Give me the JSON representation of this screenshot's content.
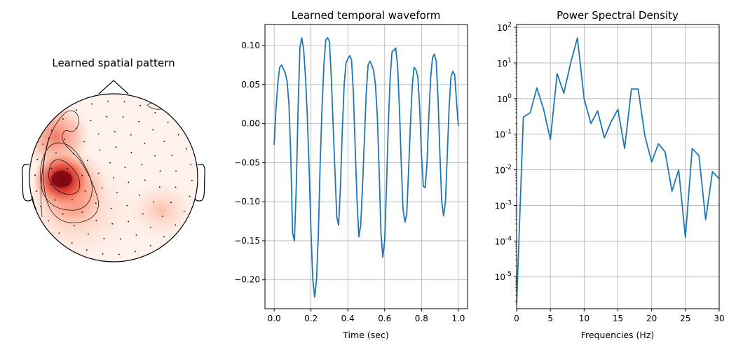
{
  "chart_data": [
    {
      "type": "topomap",
      "title": "Learned spatial pattern",
      "colormap": "Reds",
      "peak_color": "#8b0c12",
      "sensor_count": 96
    },
    {
      "type": "line",
      "title": "Learned temporal waveform",
      "xlabel": "Time (sec)",
      "ylabel": "",
      "xlim": [
        -0.05,
        1.05
      ],
      "ylim": [
        -0.237,
        0.127
      ],
      "xticks": [
        "0.0",
        "0.2",
        "0.4",
        "0.6",
        "0.8",
        "1.0"
      ],
      "xtick_values": [
        0,
        0.2,
        0.4,
        0.6,
        0.8,
        1.0
      ],
      "yticks": [
        "0.10",
        "0.05",
        "0.00",
        "−0.05",
        "−0.10",
        "−0.15",
        "−0.20"
      ],
      "ytick_values": [
        0.1,
        0.05,
        0.0,
        -0.05,
        -0.1,
        -0.15,
        -0.2
      ],
      "grid": true,
      "line_color": "#1f77b4",
      "series": [
        {
          "x": [
            0.0,
            0.01,
            0.02,
            0.03,
            0.04,
            0.05,
            0.06,
            0.07,
            0.08,
            0.09,
            0.1,
            0.11,
            0.12,
            0.13,
            0.14,
            0.15,
            0.16,
            0.17,
            0.18,
            0.19,
            0.2,
            0.21,
            0.22,
            0.23,
            0.24,
            0.25,
            0.26,
            0.27,
            0.28,
            0.29,
            0.3,
            0.31,
            0.32,
            0.33,
            0.34,
            0.35,
            0.36,
            0.37,
            0.38,
            0.39,
            0.4,
            0.41,
            0.42,
            0.43,
            0.44,
            0.45,
            0.46,
            0.47,
            0.48,
            0.49,
            0.5,
            0.51,
            0.52,
            0.53,
            0.54,
            0.55,
            0.56,
            0.57,
            0.58,
            0.59,
            0.6,
            0.61,
            0.62,
            0.63,
            0.64,
            0.65,
            0.66,
            0.67,
            0.68,
            0.69,
            0.7,
            0.71,
            0.72,
            0.73,
            0.74,
            0.75,
            0.76,
            0.77,
            0.78,
            0.79,
            0.8,
            0.81,
            0.82,
            0.83,
            0.84,
            0.85,
            0.86,
            0.87,
            0.88,
            0.89,
            0.9,
            0.91,
            0.92,
            0.93,
            0.94,
            0.95,
            0.96,
            0.97,
            0.98,
            0.99,
            1.0
          ],
          "y": [
            -0.027,
            0.02,
            0.052,
            0.072,
            0.075,
            0.07,
            0.065,
            0.055,
            0.025,
            -0.04,
            -0.14,
            -0.15,
            -0.08,
            0.02,
            0.098,
            0.11,
            0.095,
            0.06,
            0.01,
            -0.06,
            -0.14,
            -0.2,
            -0.222,
            -0.2,
            -0.14,
            -0.05,
            0.02,
            0.075,
            0.107,
            0.11,
            0.105,
            0.06,
            0.0,
            -0.06,
            -0.12,
            -0.13,
            -0.08,
            -0.01,
            0.05,
            0.078,
            0.083,
            0.087,
            0.082,
            0.04,
            -0.03,
            -0.1,
            -0.145,
            -0.13,
            -0.08,
            -0.02,
            0.04,
            0.075,
            0.08,
            0.075,
            0.068,
            0.05,
            0.01,
            -0.06,
            -0.14,
            -0.171,
            -0.15,
            -0.08,
            0.0,
            0.06,
            0.092,
            0.094,
            0.097,
            0.075,
            0.02,
            -0.05,
            -0.11,
            -0.126,
            -0.115,
            -0.06,
            0.0,
            0.05,
            0.072,
            0.069,
            0.06,
            0.02,
            -0.04,
            -0.08,
            -0.082,
            -0.05,
            0.01,
            0.06,
            0.085,
            0.089,
            0.08,
            0.03,
            -0.04,
            -0.1,
            -0.118,
            -0.1,
            -0.04,
            0.02,
            0.06,
            0.067,
            0.063,
            0.03,
            -0.003
          ]
        }
      ]
    },
    {
      "type": "line",
      "title": "Power Spectral Density",
      "xlabel": "Frequencies (Hz)",
      "ylabel": "",
      "yscale": "log",
      "xlim": [
        0,
        30
      ],
      "ylim_log10": [
        -5.9,
        2.08
      ],
      "xticks": [
        "0",
        "5",
        "10",
        "15",
        "20",
        "25",
        "30"
      ],
      "xtick_values": [
        0,
        5,
        10,
        15,
        20,
        25,
        30
      ],
      "ytick_exponents": [
        "2",
        "1",
        "0",
        "-1",
        "-2",
        "-3",
        "-4",
        "-5"
      ],
      "ytick_values_log10": [
        2,
        1,
        0,
        -1,
        -2,
        -3,
        -4,
        -5
      ],
      "ytick_base": "10",
      "grid": true,
      "line_color": "#1f77b4",
      "series": [
        {
          "x": [
            0,
            1,
            2,
            3,
            4,
            5,
            6,
            7,
            8,
            9,
            10,
            11,
            12,
            13,
            14,
            15,
            16,
            17,
            18,
            19,
            20,
            21,
            22,
            23,
            24,
            25,
            26,
            27,
            28,
            29,
            30
          ],
          "y_log10": [
            -5.8,
            -0.52,
            -0.4,
            0.3,
            -0.3,
            -1.15,
            0.7,
            0.15,
            1.0,
            1.7,
            0.0,
            -0.7,
            -0.35,
            -1.1,
            -0.65,
            -0.3,
            -1.4,
            0.27,
            0.27,
            -1.05,
            -1.78,
            -1.27,
            -1.5,
            -2.6,
            -2.0,
            -3.9,
            -1.4,
            -1.6,
            -3.4,
            -2.05,
            -2.25
          ]
        }
      ]
    }
  ]
}
